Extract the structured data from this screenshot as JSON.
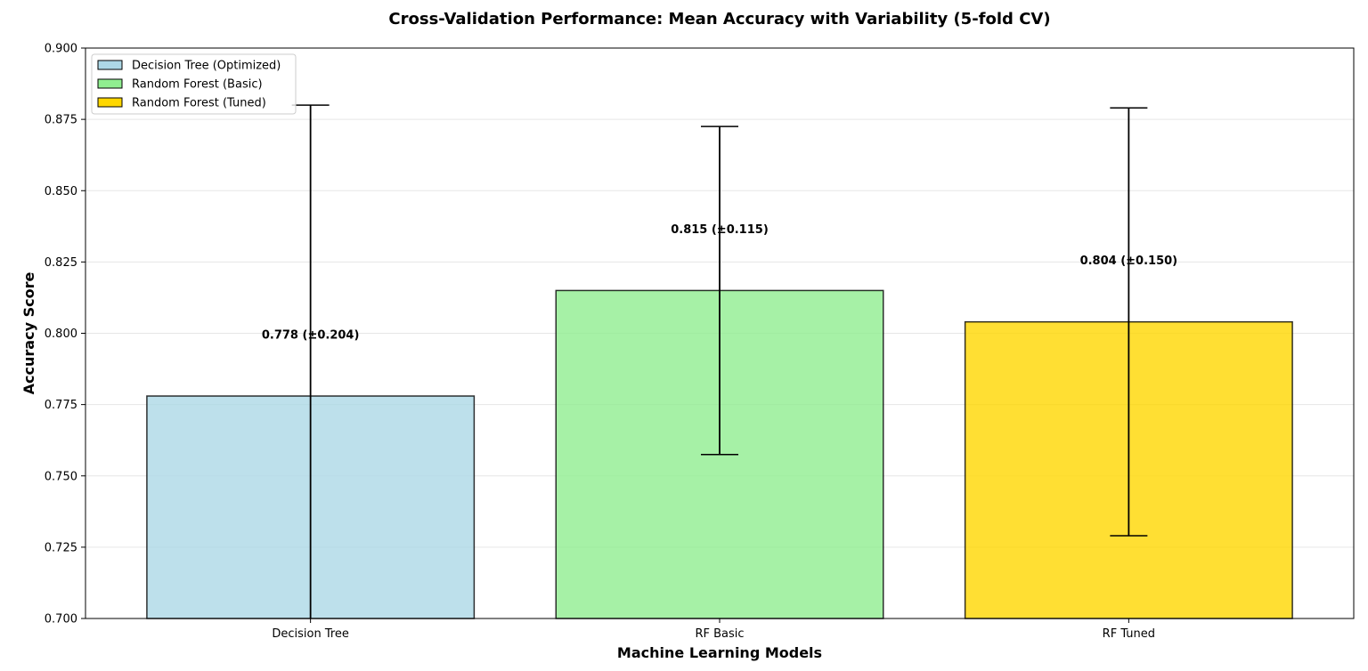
{
  "chart_data": {
    "type": "bar",
    "title": "Cross-Validation Performance: Mean Accuracy with Variability (5-fold CV)",
    "xlabel": "Machine Learning Models",
    "ylabel": "Accuracy Score",
    "categories": [
      "Decision Tree",
      "RF Basic",
      "RF Tuned"
    ],
    "values": [
      0.778,
      0.815,
      0.804
    ],
    "errors": [
      0.102,
      0.0575,
      0.075
    ],
    "data_labels": [
      "0.778 (±0.204)",
      "0.815 (±0.115)",
      "0.804 (±0.150)"
    ],
    "ylim": [
      0.7,
      0.9
    ],
    "yticks": [
      "0.700",
      "0.725",
      "0.750",
      "0.775",
      "0.800",
      "0.825",
      "0.850",
      "0.875",
      "0.900"
    ],
    "ytick_values": [
      0.7,
      0.725,
      0.75,
      0.775,
      0.8,
      0.825,
      0.85,
      0.875,
      0.9
    ],
    "colors": [
      "#add8e6",
      "#90ee90",
      "#ffd700"
    ],
    "bar_alpha": 0.8,
    "legend": {
      "position": "top-left",
      "entries": [
        "Decision Tree (Optimized)",
        "Random Forest (Basic)",
        "Random Forest (Tuned)"
      ]
    },
    "grid": "horizontal"
  }
}
